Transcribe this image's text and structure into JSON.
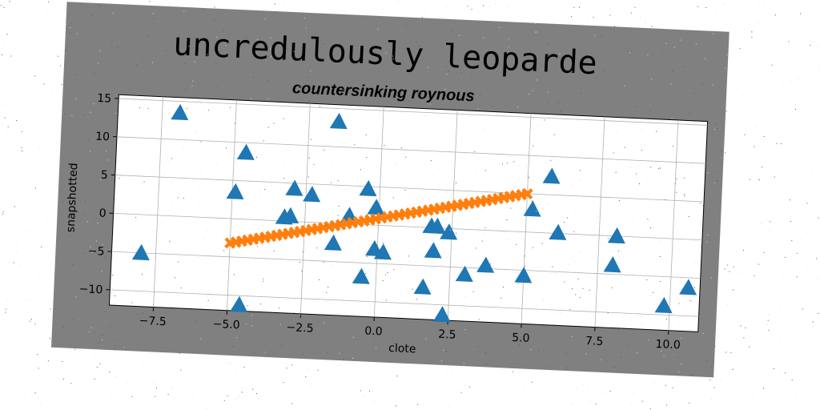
{
  "chart_data": {
    "type": "scatter",
    "title": "uncredulously leoparde",
    "subtitle": "countersinking roynous",
    "xlabel": "clote",
    "ylabel": "snapshotted",
    "xlim": [
      -9.0,
      11.0
    ],
    "ylim": [
      -12.0,
      15.5
    ],
    "xticks": [
      -7.5,
      -5.0,
      -2.5,
      0.0,
      2.5,
      5.0,
      7.5,
      10.0
    ],
    "yticks": [
      -10,
      -5,
      0,
      5,
      10,
      15
    ],
    "grid": true,
    "series": [
      {
        "marker": "triangle",
        "color": "#1f77b4",
        "points": [
          [
            -6.9,
            13.5
          ],
          [
            -1.5,
            13.3
          ],
          [
            -4.6,
            8.7
          ],
          [
            -4.9,
            3.5
          ],
          [
            -2.9,
            4.3
          ],
          [
            -2.3,
            3.6
          ],
          [
            -0.4,
            4.7
          ],
          [
            -0.1,
            2.3
          ],
          [
            -3.2,
            0.5
          ],
          [
            -3.0,
            0.7
          ],
          [
            -1.0,
            1.1
          ],
          [
            -1.5,
            -2.6
          ],
          [
            -0.1,
            -3.1
          ],
          [
            0.2,
            -3.5
          ],
          [
            -0.5,
            -6.8
          ],
          [
            -8.0,
            -5.0
          ],
          [
            -4.6,
            -11.2
          ],
          [
            1.8,
            0.2
          ],
          [
            2.0,
            0.2
          ],
          [
            2.4,
            -0.5
          ],
          [
            1.9,
            -3.0
          ],
          [
            3.0,
            -5.9
          ],
          [
            3.7,
            -4.6
          ],
          [
            1.6,
            -7.8
          ],
          [
            2.3,
            -11.3
          ],
          [
            5.2,
            3.0
          ],
          [
            5.8,
            7.4
          ],
          [
            6.1,
            0.1
          ],
          [
            5.0,
            -5.7
          ],
          [
            8.1,
            0.0
          ],
          [
            8.0,
            -3.8
          ],
          [
            9.8,
            -8.8
          ],
          [
            10.6,
            -6.3
          ]
        ]
      },
      {
        "marker": "x",
        "color": "#ff7f0e",
        "line": {
          "x_start": -5.0,
          "x_end": 5.0,
          "y_start": -3.2,
          "y_end": 5.0,
          "count": 52
        }
      }
    ]
  }
}
